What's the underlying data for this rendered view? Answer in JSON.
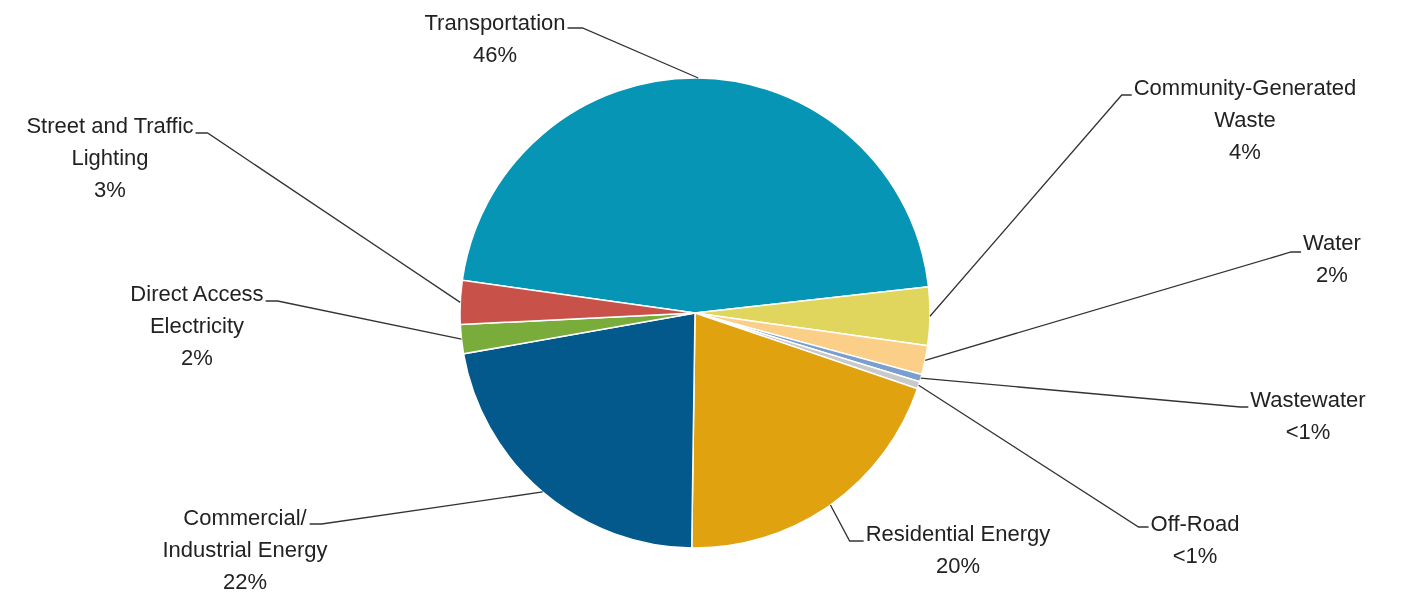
{
  "chart_data": {
    "type": "pie",
    "categories": [
      "Transportation",
      "Community-Generated Waste",
      "Water",
      "Wastewater",
      "Off-Road",
      "Residential Energy",
      "Commercial/ Industrial Energy",
      "Direct Access Electricity",
      "Street and Traffic Lighting"
    ],
    "values": [
      46,
      4,
      2,
      0.5,
      0.5,
      20,
      22,
      2,
      3
    ],
    "value_labels": [
      "46%",
      "4%",
      "2%",
      "<1%",
      "<1%",
      "20%",
      "22%",
      "2%",
      "3%"
    ],
    "colors": [
      "#0795b5",
      "#e0d65e",
      "#fbcf87",
      "#7a9fcf",
      "#c9c9c9",
      "#e0a30f",
      "#03588c",
      "#7aac3c",
      "#c8524a"
    ]
  }
}
